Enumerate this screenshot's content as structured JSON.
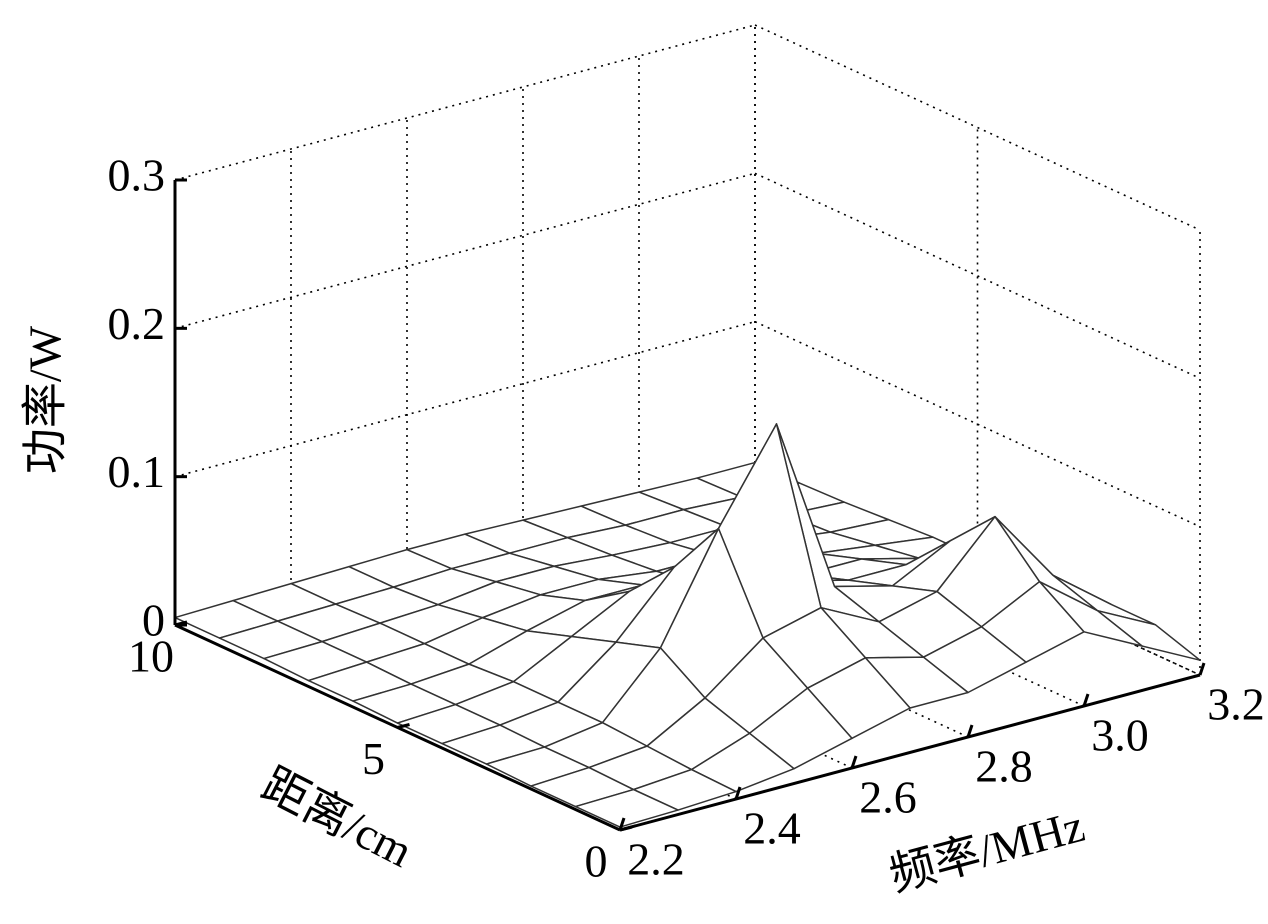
{
  "chart_data": {
    "type": "surface",
    "xlabel": "频率/MHz",
    "ylabel": "距离/cm",
    "zlabel": "功率/W",
    "x": [
      2.2,
      2.3,
      2.4,
      2.5,
      2.6,
      2.7,
      2.8,
      2.9,
      3.0,
      3.1,
      3.2
    ],
    "y": [
      0,
      1,
      2,
      3,
      4,
      5,
      6,
      7,
      8,
      9,
      10
    ],
    "z": [
      [
        0.002,
        0.003,
        0.005,
        0.01,
        0.02,
        0.03,
        0.03,
        0.04,
        0.05,
        0.03,
        0.01
      ],
      [
        0.002,
        0.003,
        0.006,
        0.02,
        0.04,
        0.05,
        0.04,
        0.05,
        0.07,
        0.04,
        0.02
      ],
      [
        0.002,
        0.004,
        0.008,
        0.03,
        0.06,
        0.07,
        0.05,
        0.06,
        0.1,
        0.05,
        0.02
      ],
      [
        0.003,
        0.004,
        0.01,
        0.05,
        0.12,
        0.18,
        0.06,
        0.05,
        0.07,
        0.04,
        0.02
      ],
      [
        0.003,
        0.005,
        0.01,
        0.04,
        0.08,
        0.1,
        0.05,
        0.04,
        0.04,
        0.03,
        0.02
      ],
      [
        0.003,
        0.005,
        0.01,
        0.03,
        0.05,
        0.05,
        0.03,
        0.03,
        0.03,
        0.02,
        0.01
      ],
      [
        0.004,
        0.005,
        0.008,
        0.02,
        0.03,
        0.03,
        0.02,
        0.02,
        0.02,
        0.015,
        0.01
      ],
      [
        0.004,
        0.006,
        0.008,
        0.015,
        0.02,
        0.02,
        0.015,
        0.015,
        0.015,
        0.01,
        0.008
      ],
      [
        0.005,
        0.006,
        0.008,
        0.01,
        0.015,
        0.015,
        0.012,
        0.01,
        0.01,
        0.008,
        0.006
      ],
      [
        0.005,
        0.006,
        0.007,
        0.008,
        0.01,
        0.01,
        0.01,
        0.008,
        0.008,
        0.006,
        0.005
      ],
      [
        0.005,
        0.006,
        0.007,
        0.008,
        0.009,
        0.009,
        0.008,
        0.007,
        0.006,
        0.005,
        0.005
      ]
    ],
    "xlim": [
      2.2,
      3.2
    ],
    "xticks": [
      2.2,
      2.4,
      2.6,
      2.8,
      {
        "value": 3,
        "label": "3.0"
      },
      3.2
    ],
    "ylim": [
      0,
      10
    ],
    "yticks": [
      0,
      5,
      10
    ],
    "zlim": [
      0,
      0.3
    ],
    "zticks": [
      0,
      0.1,
      0.2,
      0.3
    ],
    "grid": true,
    "facecolor": "#ffffff",
    "edgecolor": "#333333"
  }
}
